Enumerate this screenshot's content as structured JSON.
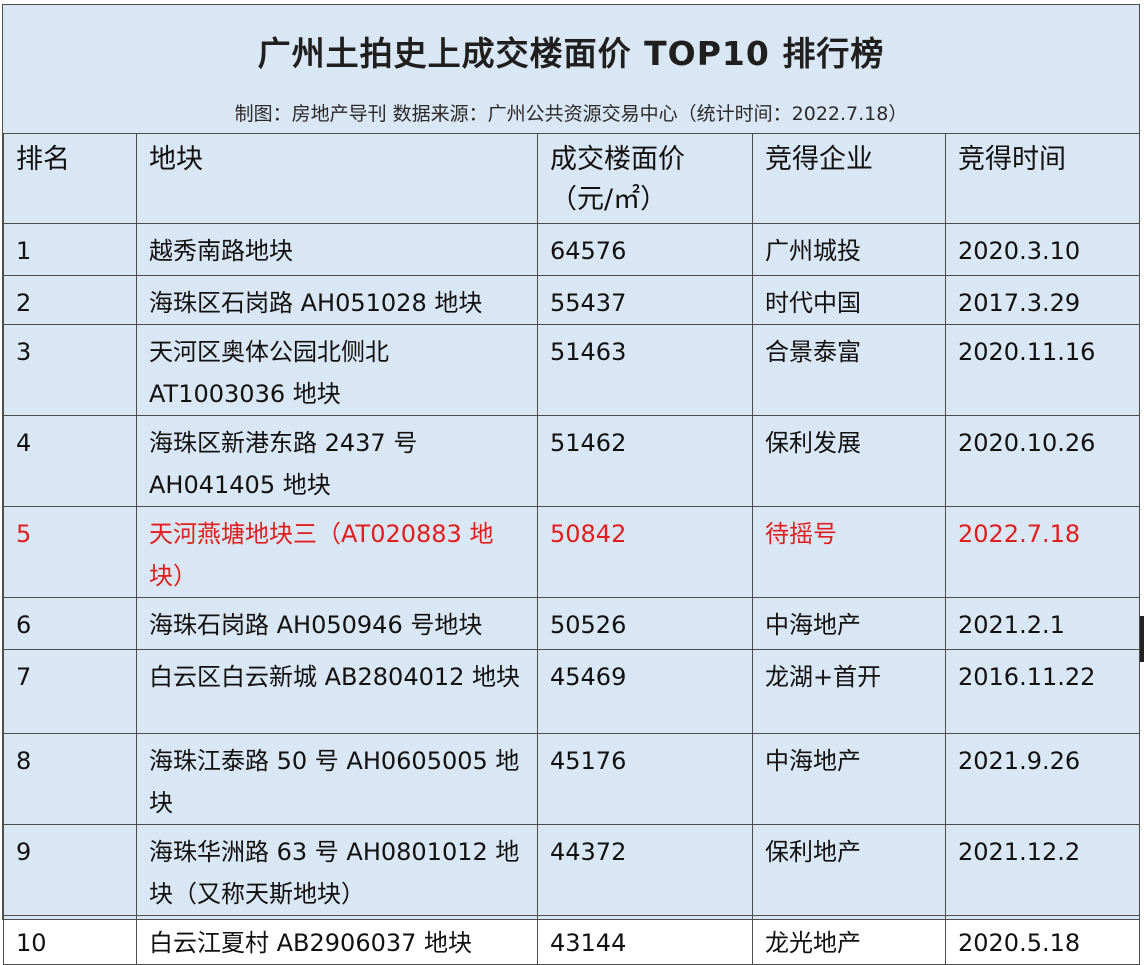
{
  "title": "广州土拍史上成交楼面价 TOP10 排行榜",
  "subtitle": "制图：房地产导刊 数据来源：广州公共资源交易中心（统计时间：2022.7.18）",
  "headers": {
    "rank": "排名",
    "plot": "地块",
    "price": "成交楼面价（元/㎡）",
    "company": "竞得企业",
    "date": "竞得时间"
  },
  "rows": [
    {
      "rank": "1",
      "plot": "越秀南路地块",
      "price": "64576",
      "company": "广州城投",
      "date": "2020.3.10"
    },
    {
      "rank": "2",
      "plot": "海珠区石岗路 AH051028 地块",
      "price": "55437",
      "company": "时代中国",
      "date": "2017.3.29"
    },
    {
      "rank": "3",
      "plot": "天河区奥体公园北侧北 AT1003036 地块",
      "price": "51463",
      "company": "合景泰富",
      "date": "2020.11.16"
    },
    {
      "rank": "4",
      "plot": "海珠区新港东路 2437 号 AH041405 地块",
      "price": "51462",
      "company": "保利发展",
      "date": "2020.10.26"
    },
    {
      "rank": "5",
      "plot": "天河燕塘地块三（AT020883 地块）",
      "price": "50842",
      "company": "待摇号",
      "date": "2022.7.18"
    },
    {
      "rank": "6",
      "plot": "海珠石岗路 AH050946 号地块",
      "price": "50526",
      "company": "中海地产",
      "date": "2021.2.1"
    },
    {
      "rank": "7",
      "plot": "白云区白云新城 AB2804012 地块",
      "price": "45469",
      "company": "龙湖+首开",
      "date": "2016.11.22"
    },
    {
      "rank": "8",
      "plot": "海珠江泰路 50 号 AH0605005 地块",
      "price": "45176",
      "company": "中海地产",
      "date": "2021.9.26"
    },
    {
      "rank": "9",
      "plot": "海珠华洲路 63 号 AH0801012 地块（又称天斯地块）",
      "price": "44372",
      "company": "保利地产",
      "date": "2021.12.2"
    },
    {
      "rank": "10",
      "plot": "白云江夏村 AB2906037 地块",
      "price": "43144",
      "company": "龙光地产",
      "date": "2020.5.18"
    }
  ],
  "colors": {
    "background": "#d9e6f3",
    "border": "#4d4d4d",
    "text": "#111111",
    "highlight": "#e11d1d"
  }
}
